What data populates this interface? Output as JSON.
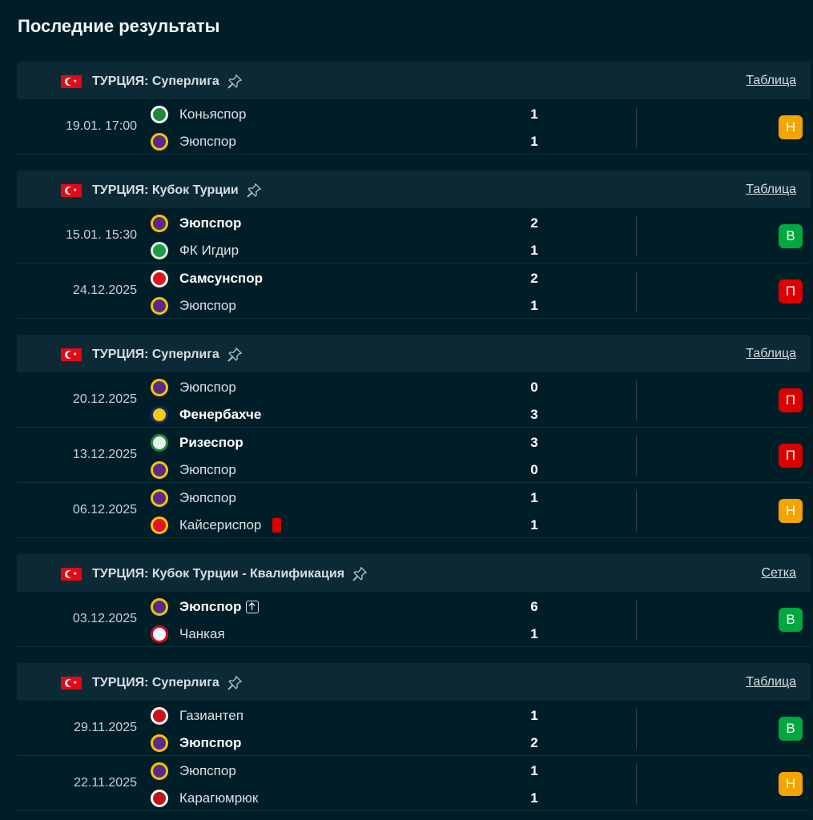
{
  "page_title": "Последние результаты",
  "colors": {
    "background": "#001e28",
    "league_bar": "#0c2a35",
    "draw": "#f5a300",
    "win": "#00a83f",
    "loss": "#dc0000"
  },
  "sections": [
    {
      "league": "ТУРЦИЯ: Суперлига",
      "link": "Таблица",
      "matches": [
        {
          "date": "19.01. 17:00",
          "home": "Коньяспор",
          "away": "Эюпспор",
          "home_score": "1",
          "away_score": "1",
          "home_bold": false,
          "away_bold": false,
          "result": "Н",
          "result_type": "draw",
          "home_logo": "konyaspor-logo",
          "away_logo": "eyupspor-logo"
        }
      ]
    },
    {
      "league": "ТУРЦИЯ: Кубок Турции",
      "link": "Таблица",
      "matches": [
        {
          "date": "15.01. 15:30",
          "home": "Эюпспор",
          "away": "ФК Игдир",
          "home_score": "2",
          "away_score": "1",
          "home_bold": true,
          "away_bold": false,
          "result": "В",
          "result_type": "win",
          "home_logo": "eyupspor-logo",
          "away_logo": "igdir-logo"
        },
        {
          "date": "24.12.2025",
          "home": "Самсунспор",
          "away": "Эюпспор",
          "home_score": "2",
          "away_score": "1",
          "home_bold": true,
          "away_bold": false,
          "result": "П",
          "result_type": "loss",
          "home_logo": "samsunspor-logo",
          "away_logo": "eyupspor-logo"
        }
      ]
    },
    {
      "league": "ТУРЦИЯ: Суперлига",
      "link": "Таблица",
      "matches": [
        {
          "date": "20.12.2025",
          "home": "Эюпспор",
          "away": "Фенербахче",
          "home_score": "0",
          "away_score": "3",
          "home_bold": false,
          "away_bold": true,
          "result": "П",
          "result_type": "loss",
          "home_logo": "eyupspor-logo",
          "away_logo": "fenerbahce-logo"
        },
        {
          "date": "13.12.2025",
          "home": "Ризеспор",
          "away": "Эюпспор",
          "home_score": "3",
          "away_score": "0",
          "home_bold": true,
          "away_bold": false,
          "result": "П",
          "result_type": "loss",
          "home_logo": "rizespor-logo",
          "away_logo": "eyupspor-logo"
        },
        {
          "date": "06.12.2025",
          "home": "Эюпспор",
          "away": "Кайсериспор",
          "home_score": "1",
          "away_score": "1",
          "home_bold": false,
          "away_bold": false,
          "result": "Н",
          "result_type": "draw",
          "home_logo": "eyupspor-logo",
          "away_logo": "kayserispor-logo",
          "away_red_card": true
        }
      ]
    },
    {
      "league": "ТУРЦИЯ: Кубок Турции - Квалификация",
      "link": "Сетка",
      "matches": [
        {
          "date": "03.12.2025",
          "home": "Эюпспор",
          "away": "Чанкая",
          "home_score": "6",
          "away_score": "1",
          "home_bold": true,
          "away_bold": false,
          "result": "В",
          "result_type": "win",
          "home_logo": "eyupspor-logo",
          "away_logo": "cankaya-logo",
          "home_advanced": true
        }
      ]
    },
    {
      "league": "ТУРЦИЯ: Суперлига",
      "link": "Таблица",
      "matches": [
        {
          "date": "29.11.2025",
          "home": "Газиантеп",
          "away": "Эюпспор",
          "home_score": "1",
          "away_score": "2",
          "home_bold": false,
          "away_bold": true,
          "result": "В",
          "result_type": "win",
          "home_logo": "gaziantep-logo",
          "away_logo": "eyupspor-logo"
        },
        {
          "date": "22.11.2025",
          "home": "Эюпспор",
          "away": "Карагюмрюк",
          "home_score": "1",
          "away_score": "1",
          "home_bold": false,
          "away_bold": false,
          "result": "Н",
          "result_type": "draw",
          "home_logo": "eyupspor-logo",
          "away_logo": "karagumruk-logo"
        }
      ]
    }
  ]
}
